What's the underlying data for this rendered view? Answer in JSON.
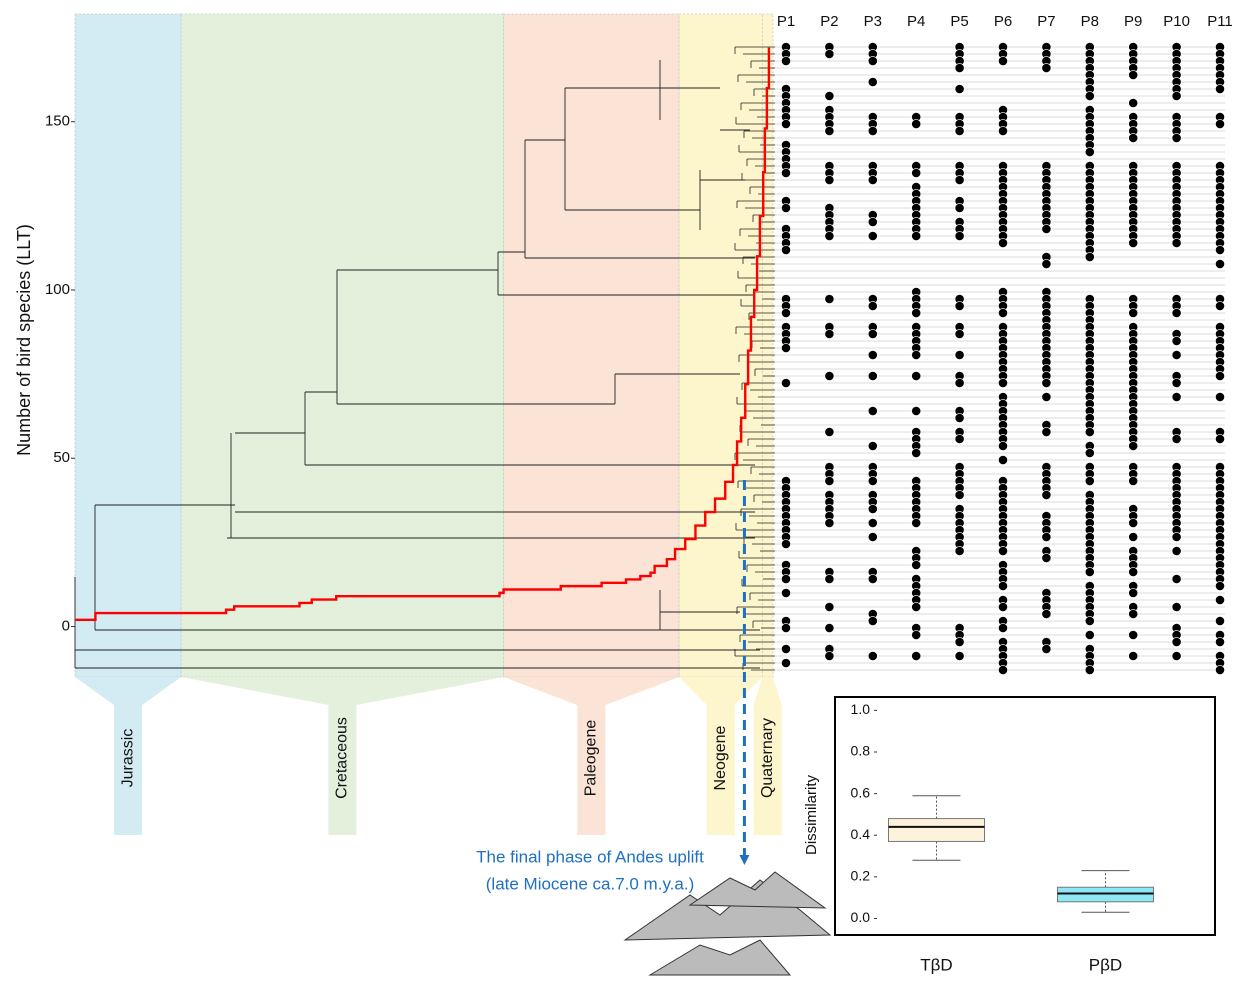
{
  "chart_data": [
    {
      "type": "ltt",
      "y_label": "Number of bird species (LLT)",
      "color": "#ff0000",
      "x": [
        171,
        166,
        134,
        132,
        116,
        113,
        107,
        67,
        66,
        52,
        42,
        36,
        32.5,
        30,
        29,
        26,
        24,
        21.5,
        19,
        16.6,
        14.2,
        11.7,
        9.8,
        8.8,
        7.8,
        6.8,
        6.1,
        5.4,
        4.6,
        3.9,
        3.2,
        2.4,
        2.0,
        1.5,
        1.0
      ],
      "values": [
        2,
        4,
        5,
        6,
        7,
        8,
        9,
        10,
        11,
        12,
        13,
        14,
        15,
        16,
        18,
        20,
        23,
        26,
        30,
        34,
        38,
        43,
        48,
        55,
        62,
        72,
        82,
        92,
        100,
        110,
        122,
        135,
        148,
        160,
        172
      ],
      "xlim": [
        171,
        0
      ],
      "ylim": [
        -15,
        182
      ],
      "yticks": [
        0,
        50,
        100,
        150
      ],
      "periods": [
        {
          "name": "Jurassic",
          "from": 171,
          "to": 145,
          "color": "#d3ebf2"
        },
        {
          "name": "Cretaceous",
          "from": 145,
          "to": 66,
          "color": "#e3f1dc"
        },
        {
          "name": "Paleogene",
          "from": 66,
          "to": 23,
          "color": "#fbe3d6"
        },
        {
          "name": "Neogene",
          "from": 23,
          "to": 2.6,
          "color": "#fdf5cc"
        },
        {
          "name": "Quaternary",
          "from": 2.6,
          "to": 0,
          "color": "#fdf5cc"
        }
      ],
      "annotation": {
        "text": [
          "The final phase of Andes uplift",
          "(late Miocene ca.7.0 m.y.a.)"
        ],
        "x": 7,
        "color": "#1f70c1"
      },
      "sites": [
        {
          "name": "P1",
          "present": [
            0,
            1,
            2,
            6,
            7,
            8,
            9,
            10,
            11,
            14,
            15,
            16,
            17,
            18,
            22,
            23,
            26,
            27,
            28,
            29,
            36,
            37,
            38,
            40,
            41,
            42,
            43,
            48,
            62,
            63,
            64,
            65,
            66,
            67,
            68,
            69,
            70,
            71,
            74,
            75,
            76,
            78,
            82,
            83,
            86,
            88
          ]
        },
        {
          "name": "P2",
          "present": [
            0,
            1,
            7,
            9,
            10,
            11,
            12,
            17,
            18,
            19,
            23,
            24,
            25,
            26,
            27,
            36,
            40,
            41,
            47,
            55,
            60,
            61,
            62,
            64,
            65,
            66,
            67,
            68,
            75,
            76,
            80,
            83,
            86,
            87
          ]
        },
        {
          "name": "P3",
          "present": [
            0,
            1,
            2,
            5,
            10,
            11,
            12,
            17,
            18,
            19,
            24,
            25,
            27,
            36,
            37,
            40,
            41,
            44,
            47,
            52,
            57,
            60,
            61,
            62,
            64,
            65,
            66,
            68,
            70,
            75,
            76,
            81,
            82,
            87
          ]
        },
        {
          "name": "P4",
          "present": [
            10,
            11,
            17,
            18,
            20,
            21,
            22,
            23,
            24,
            25,
            26,
            27,
            35,
            36,
            37,
            38,
            40,
            41,
            42,
            43,
            44,
            47,
            52,
            55,
            56,
            57,
            58,
            62,
            63,
            64,
            65,
            66,
            67,
            68,
            72,
            73,
            74,
            76,
            77,
            78,
            79,
            80,
            83,
            84,
            87
          ]
        },
        {
          "name": "P5",
          "present": [
            0,
            1,
            2,
            3,
            6,
            10,
            11,
            12,
            17,
            18,
            19,
            22,
            23,
            25,
            26,
            27,
            36,
            37,
            40,
            41,
            44,
            47,
            48,
            52,
            53,
            55,
            56,
            60,
            61,
            62,
            63,
            64,
            66,
            67,
            68,
            69,
            70,
            71,
            72,
            83,
            84,
            85,
            87
          ]
        },
        {
          "name": "P6",
          "present": [
            0,
            1,
            2,
            9,
            10,
            11,
            12,
            17,
            18,
            19,
            20,
            21,
            22,
            23,
            24,
            25,
            26,
            27,
            28,
            35,
            36,
            37,
            38,
            40,
            41,
            42,
            43,
            44,
            45,
            46,
            47,
            48,
            50,
            51,
            52,
            53,
            54,
            55,
            56,
            57,
            59,
            62,
            63,
            64,
            65,
            66,
            67,
            68,
            69,
            70,
            71,
            72,
            74,
            75,
            76,
            77,
            79,
            80,
            82,
            83,
            85,
            86,
            87,
            88,
            89
          ]
        },
        {
          "name": "P7",
          "present": [
            0,
            1,
            2,
            3,
            17,
            18,
            19,
            20,
            21,
            22,
            23,
            24,
            25,
            26,
            30,
            31,
            35,
            36,
            37,
            38,
            39,
            40,
            41,
            42,
            43,
            44,
            45,
            46,
            47,
            48,
            50,
            54,
            55,
            60,
            61,
            62,
            63,
            64,
            67,
            68,
            69,
            70,
            72,
            73,
            78,
            79,
            80,
            81,
            85,
            86
          ]
        },
        {
          "name": "P8",
          "present": [
            0,
            1,
            2,
            3,
            4,
            5,
            6,
            7,
            9,
            10,
            11,
            12,
            13,
            14,
            15,
            17,
            18,
            19,
            20,
            21,
            22,
            23,
            24,
            25,
            26,
            27,
            28,
            29,
            30,
            36,
            37,
            38,
            39,
            40,
            41,
            42,
            43,
            44,
            45,
            46,
            47,
            48,
            49,
            50,
            51,
            52,
            53,
            54,
            55,
            57,
            58,
            60,
            61,
            62,
            64,
            65,
            66,
            67,
            68,
            69,
            70,
            71,
            72,
            73,
            74,
            75,
            77,
            78,
            79,
            80,
            81,
            82,
            84,
            86,
            87,
            88,
            89
          ]
        },
        {
          "name": "P9",
          "present": [
            0,
            1,
            2,
            3,
            4,
            8,
            10,
            11,
            12,
            13,
            17,
            18,
            19,
            20,
            21,
            22,
            23,
            24,
            25,
            26,
            27,
            28,
            36,
            37,
            38,
            40,
            41,
            42,
            43,
            44,
            45,
            46,
            47,
            48,
            49,
            50,
            51,
            52,
            53,
            54,
            55,
            56,
            57,
            60,
            61,
            62,
            66,
            67,
            68,
            70,
            72,
            73,
            74,
            75,
            77,
            78,
            80,
            81,
            84,
            87
          ]
        },
        {
          "name": "P10",
          "present": [
            0,
            1,
            2,
            3,
            4,
            5,
            6,
            7,
            10,
            11,
            12,
            13,
            17,
            18,
            19,
            20,
            21,
            22,
            23,
            24,
            25,
            26,
            27,
            28,
            36,
            37,
            38,
            41,
            42,
            44,
            47,
            48,
            50,
            55,
            56,
            60,
            61,
            62,
            63,
            64,
            65,
            66,
            67,
            68,
            69,
            70,
            72,
            76,
            80,
            83,
            84,
            85,
            87
          ]
        },
        {
          "name": "P11",
          "present": [
            0,
            1,
            2,
            3,
            4,
            5,
            6,
            10,
            11,
            17,
            18,
            19,
            20,
            21,
            22,
            23,
            24,
            25,
            26,
            27,
            28,
            29,
            31,
            36,
            37,
            40,
            41,
            42,
            43,
            44,
            45,
            46,
            47,
            50,
            55,
            56,
            60,
            61,
            62,
            63,
            64,
            65,
            66,
            67,
            68,
            69,
            70,
            71,
            72,
            73,
            74,
            75,
            76,
            77,
            79,
            82,
            84,
            85,
            87,
            88,
            89
          ]
        }
      ]
    },
    {
      "type": "box",
      "y_label": "Dissimilarity",
      "categories": [
        "TβD",
        "PβD"
      ],
      "low": [
        0.28,
        0.03
      ],
      "q1": [
        0.37,
        0.08
      ],
      "median": [
        0.44,
        0.12
      ],
      "q3": [
        0.48,
        0.15
      ],
      "high": [
        0.59,
        0.23
      ],
      "colors": [
        "#fdf3dc",
        "#8fe6f5"
      ],
      "ylim": [
        -0.07,
        1.05
      ],
      "yticks": [
        {
          "value": 0,
          "label": "0.0"
        },
        0.2,
        0.4,
        0.6,
        0.8,
        {
          "value": 1,
          "label": "1.0"
        }
      ]
    }
  ]
}
